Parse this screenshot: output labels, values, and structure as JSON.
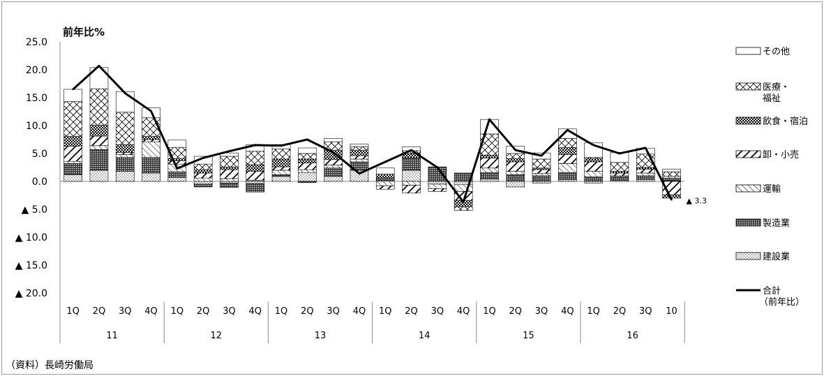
{
  "source_note": "（資料）長崎労働局",
  "chart_data": {
    "type": "bar",
    "subtype": "stacked bar + line",
    "ylabel": "前年比%",
    "ylim": [
      -20,
      25
    ],
    "yticks": [
      {
        "value": 25,
        "label": "25.0"
      },
      {
        "value": 20,
        "label": "20.0"
      },
      {
        "value": 15,
        "label": "15.0"
      },
      {
        "value": 10,
        "label": "10.0"
      },
      {
        "value": 5,
        "label": "5.0"
      },
      {
        "value": 0,
        "label": "0.0"
      },
      {
        "value": -5,
        "label": "▲ 5.0"
      },
      {
        "value": -10,
        "label": "▲ 10.0"
      },
      {
        "value": -15,
        "label": "▲ 15.0"
      },
      {
        "value": -20,
        "label": "▲ 20.0"
      }
    ],
    "categories": [
      "1Q",
      "2Q",
      "3Q",
      "4Q",
      "1Q",
      "2Q",
      "3Q",
      "4Q",
      "1Q",
      "2Q",
      "3Q",
      "4Q",
      "1Q",
      "2Q",
      "3Q",
      "4Q",
      "1Q",
      "2Q",
      "3Q",
      "4Q",
      "1Q",
      "2Q",
      "3Q",
      "10"
    ],
    "year_groups": [
      {
        "label": "11",
        "count": 4
      },
      {
        "label": "12",
        "count": 4
      },
      {
        "label": "13",
        "count": 4
      },
      {
        "label": "14",
        "count": 4
      },
      {
        "label": "15",
        "count": 4
      },
      {
        "label": "16",
        "count": 4
      }
    ],
    "legend_position": "right",
    "grid": false,
    "series": [
      {
        "name": "建設業",
        "pattern": "dots",
        "values": [
          1.2,
          2.0,
          1.8,
          1.5,
          0.7,
          -0.5,
          -0.3,
          -0.4,
          0.9,
          1.6,
          0.9,
          2.0,
          0.2,
          2.0,
          -0.5,
          -0.6,
          0.4,
          -1.0,
          -0.3,
          0.3,
          -0.3,
          0.2,
          0.3,
          0.1
        ]
      },
      {
        "name": "製造業",
        "pattern": "dense",
        "values": [
          2.0,
          3.7,
          2.5,
          2.8,
          1.0,
          -0.5,
          -0.8,
          -1.5,
          0.3,
          -0.2,
          1.5,
          1.5,
          0.4,
          2.2,
          2.6,
          1.5,
          1.2,
          1.2,
          1.0,
          1.3,
          0.8,
          0.6,
          0.7,
          0.5
        ]
      },
      {
        "name": "運輸",
        "pattern": "diag-fine",
        "values": [
          0.4,
          0.7,
          0.5,
          2.8,
          1.4,
          0.6,
          0.5,
          0.2,
          0.8,
          0.5,
          0.5,
          0.5,
          -0.8,
          -0.7,
          -0.8,
          -1.2,
          0.8,
          0.6,
          0.4,
          1.6,
          1.0,
          0.2,
          0.5,
          0.3
        ]
      },
      {
        "name": "卸・小売",
        "pattern": "diag-thick",
        "values": [
          2.7,
          1.7,
          0.4,
          0.4,
          0.6,
          0.9,
          1.6,
          1.6,
          0.6,
          1.2,
          1.0,
          0.6,
          -0.6,
          -1.4,
          -0.5,
          -1.6,
          1.8,
          1.7,
          0.7,
          1.6,
          1.7,
          0.5,
          0.7,
          -2.4
        ]
      },
      {
        "name": "飲食・宿泊",
        "pattern": "dots-dark",
        "values": [
          1.8,
          2.0,
          1.4,
          0.6,
          0.4,
          0.6,
          0.5,
          1.2,
          1.4,
          0.7,
          1.7,
          1.0,
          0.7,
          0.8,
          0.0,
          -1.2,
          0.5,
          0.6,
          0.3,
          1.3,
          0.6,
          0.3,
          0.3,
          -0.6
        ]
      },
      {
        "name": "医療・福祉",
        "pattern": "crosshatch",
        "values": [
          6.2,
          6.5,
          5.8,
          3.3,
          2.0,
          1.0,
          1.9,
          2.4,
          1.8,
          1.0,
          1.5,
          0.6,
          0.0,
          0.5,
          0.0,
          -0.6,
          3.8,
          0.9,
          1.6,
          1.6,
          0.2,
          1.6,
          2.4,
          0.8
        ]
      },
      {
        "name": "その他",
        "pattern": "white",
        "values": [
          2.2,
          3.8,
          3.7,
          1.8,
          1.3,
          1.4,
          0.6,
          1.2,
          0.8,
          1.0,
          0.6,
          0.5,
          1.1,
          0.7,
          0.0,
          0.0,
          2.6,
          1.3,
          1.1,
          1.7,
          2.6,
          1.8,
          1.0,
          0.5
        ]
      }
    ],
    "total_line": {
      "name": "合計",
      "name_sub": "（前年比）",
      "values": [
        16.5,
        20.7,
        15.8,
        12.6,
        2.3,
        4.2,
        5.4,
        6.5,
        6.4,
        7.5,
        5.2,
        1.4,
        3.5,
        5.6,
        2.5,
        -3.7,
        11.1,
        5.6,
        4.6,
        9.2,
        6.5,
        5.0,
        6.0,
        -3.3
      ]
    },
    "annotations": [
      {
        "text": "▲ 3.3",
        "category_index": 23,
        "value": -3.3
      }
    ]
  }
}
